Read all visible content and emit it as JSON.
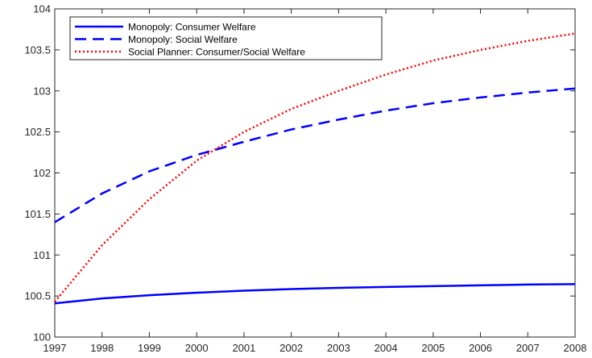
{
  "chart_data": {
    "type": "line",
    "title": "",
    "xlabel": "",
    "ylabel": "",
    "xlim": [
      1997,
      2008
    ],
    "ylim": [
      100,
      104
    ],
    "grid": false,
    "legend_position": "top-left",
    "x_ticks": [
      "1997",
      "1998",
      "1999",
      "2000",
      "2001",
      "2002",
      "2003",
      "2004",
      "2005",
      "2006",
      "2007",
      "2008"
    ],
    "y_ticks": [
      "100",
      "100.5",
      "101",
      "101.5",
      "102",
      "102.5",
      "103",
      "103.5",
      "104"
    ],
    "x": [
      1997,
      1998,
      1999,
      2000,
      2001,
      2002,
      2003,
      2004,
      2005,
      2006,
      2007,
      2008
    ],
    "series": [
      {
        "name": "Monopoly: Consumer Welfare",
        "color": "#0000ff",
        "style": "solid",
        "values": [
          100.41,
          100.47,
          100.51,
          100.54,
          100.565,
          100.585,
          100.6,
          100.61,
          100.62,
          100.63,
          100.64,
          100.645
        ]
      },
      {
        "name": "Monopoly: Social Welfare",
        "color": "#0000ff",
        "style": "dashed",
        "values": [
          101.4,
          101.75,
          102.02,
          102.22,
          102.38,
          102.53,
          102.65,
          102.76,
          102.85,
          102.92,
          102.98,
          103.03
        ]
      },
      {
        "name": "Social Planner: Consumer/Social Welfare",
        "color": "#ff0000",
        "style": "dotted",
        "values": [
          100.43,
          101.12,
          101.68,
          102.15,
          102.5,
          102.78,
          103.0,
          103.2,
          103.37,
          103.5,
          103.61,
          103.7
        ]
      }
    ]
  }
}
